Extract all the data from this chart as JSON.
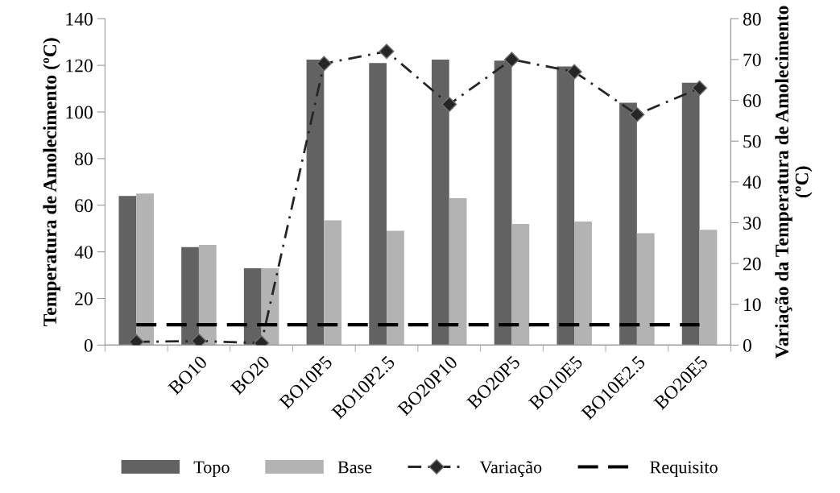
{
  "chart_data": {
    "type": "bar",
    "ylabel": "Temperatura de Amolecimento (ºC)",
    "y2label": "Variação da Temperatura de Amolecimento (ºC)",
    "categories": [
      null,
      "BO10",
      "BO20",
      "BO10P5",
      "BO10P2.5",
      "BO20P10",
      "BO20P5",
      "BO10E5",
      "BO10E2.5",
      "BO20E5"
    ],
    "series": [
      {
        "name": "Topo",
        "color": "#626262",
        "values": [
          64,
          42,
          33,
          122.5,
          121,
          122.5,
          122,
          119.5,
          104,
          112.5
        ]
      },
      {
        "name": "Base",
        "color": "#b3b3b3",
        "values": [
          65,
          43,
          33,
          53.5,
          49,
          63,
          52,
          53,
          48,
          49.5
        ]
      },
      {
        "name": "Variação",
        "type": "line",
        "axis": "y2",
        "color": "#262626",
        "marker": "diamond",
        "line_style": "dashdot",
        "values": [
          0.8,
          1,
          0.5,
          69,
          72,
          59,
          70,
          67,
          56.5,
          63
        ]
      },
      {
        "name": "Requisito",
        "type": "line",
        "axis": "y2",
        "color": "#000000",
        "marker": "none",
        "line_style": "dashed",
        "values": [
          5,
          5,
          5,
          5,
          5,
          5,
          5,
          5,
          5,
          5
        ]
      }
    ],
    "ylim": [
      0,
      140
    ],
    "yticks": [
      0,
      20,
      40,
      60,
      80,
      100,
      120,
      140
    ],
    "y2lim": [
      0,
      80
    ],
    "y2ticks": [
      0,
      10,
      20,
      30,
      40,
      50,
      60,
      70,
      80
    ],
    "grid": false,
    "legend": "bottom"
  }
}
